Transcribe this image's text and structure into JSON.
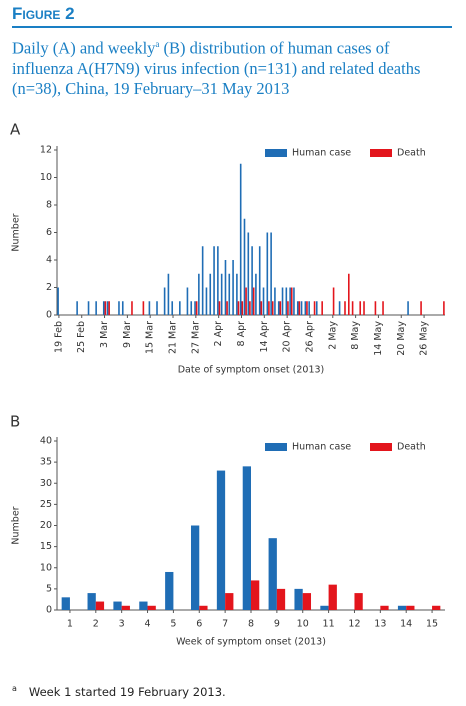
{
  "figure": {
    "label": "Figure 2",
    "title": [
      "Daily (A) and weekly",
      "a",
      " (B) distribution of human cases of influenza A(H7N9) virus infection (n=131) and related deaths (n=38), China, 19 February–31 May 2013"
    ],
    "footnote": {
      "mark": "a",
      "text": "Week 1 started 19 February 2013."
    }
  },
  "chart_data": [
    {
      "type": "bar",
      "panel": "A",
      "x_label": "Date of symptom onset (2013)",
      "y_label": "Number",
      "categories": [
        "19 Feb",
        null,
        null,
        null,
        null,
        null,
        "25 Feb",
        null,
        null,
        null,
        null,
        null,
        "3 Mar",
        null,
        null,
        null,
        null,
        null,
        "9 Mar",
        null,
        null,
        null,
        null,
        null,
        "15 Mar",
        null,
        null,
        null,
        null,
        null,
        "21 Mar",
        null,
        null,
        null,
        null,
        null,
        "27 Mar",
        null,
        null,
        null,
        null,
        null,
        "2 Apr",
        null,
        null,
        null,
        null,
        null,
        "8 Apr",
        null,
        null,
        null,
        null,
        null,
        "14 Apr",
        null,
        null,
        null,
        null,
        null,
        "20 Apr",
        null,
        null,
        null,
        null,
        null,
        "26 Apr",
        null,
        null,
        null,
        null,
        null,
        "2 May",
        null,
        null,
        null,
        null,
        null,
        "8 May",
        null,
        null,
        null,
        null,
        null,
        "14 May",
        null,
        null,
        null,
        null,
        null,
        "20 May",
        null,
        null,
        null,
        null,
        null,
        "26 May",
        null,
        null,
        null,
        null,
        null
      ],
      "series": [
        {
          "name": "Human case",
          "color": "#1f6db5",
          "values": [
            2,
            0,
            0,
            0,
            0,
            1,
            0,
            0,
            1,
            0,
            1,
            0,
            1,
            1,
            0,
            0,
            1,
            1,
            0,
            0,
            0,
            0,
            0,
            0,
            1,
            0,
            1,
            0,
            2,
            3,
            1,
            0,
            1,
            0,
            2,
            1,
            1,
            3,
            5,
            2,
            3,
            5,
            5,
            3,
            4,
            3,
            4,
            3,
            11,
            7,
            6,
            5,
            3,
            5,
            2,
            6,
            6,
            2,
            1,
            2,
            2,
            2,
            2,
            1,
            1,
            1,
            1,
            0,
            1,
            0,
            0,
            0,
            0,
            0,
            1,
            0,
            0,
            0,
            0,
            0,
            0,
            0,
            0,
            0,
            0,
            0,
            0,
            0,
            0,
            0,
            0,
            0,
            1,
            0,
            0,
            0,
            0,
            0,
            0,
            0,
            0,
            0
          ]
        },
        {
          "name": "Death",
          "color": "#e3151c",
          "values": [
            0,
            0,
            0,
            0,
            0,
            0,
            0,
            0,
            0,
            0,
            0,
            0,
            1,
            1,
            0,
            0,
            0,
            0,
            0,
            1,
            0,
            0,
            1,
            0,
            0,
            0,
            0,
            0,
            0,
            0,
            0,
            0,
            0,
            0,
            0,
            0,
            1,
            0,
            0,
            0,
            0,
            0,
            1,
            0,
            1,
            0,
            0,
            1,
            1,
            2,
            1,
            2,
            0,
            1,
            0,
            1,
            1,
            0,
            1,
            0,
            1,
            2,
            0,
            1,
            0,
            1,
            0,
            1,
            0,
            1,
            0,
            0,
            2,
            0,
            0,
            1,
            3,
            1,
            0,
            1,
            1,
            0,
            0,
            1,
            0,
            1,
            0,
            0,
            0,
            0,
            0,
            0,
            0,
            0,
            0,
            1,
            0,
            0,
            0,
            0,
            0,
            1
          ]
        }
      ],
      "ylim": [
        0,
        12
      ],
      "yticks": [
        0,
        2,
        4,
        6,
        8,
        10,
        12
      ],
      "grid": false,
      "legend": "top-right"
    },
    {
      "type": "bar",
      "panel": "B",
      "x_label": "Week of  symptom onset (2013)",
      "y_label": "Number",
      "categories": [
        1,
        2,
        3,
        4,
        5,
        6,
        7,
        8,
        9,
        10,
        11,
        12,
        13,
        14,
        15
      ],
      "series": [
        {
          "name": "Human case",
          "color": "#1f6db5",
          "values": [
            3,
            4,
            2,
            2,
            9,
            20,
            33,
            34,
            17,
            5,
            1,
            0,
            0,
            1,
            0
          ]
        },
        {
          "name": "Death",
          "color": "#e3151c",
          "values": [
            0,
            2,
            1,
            1,
            0,
            1,
            4,
            7,
            5,
            4,
            6,
            4,
            1,
            1,
            1
          ]
        }
      ],
      "ylim": [
        0,
        40
      ],
      "yticks": [
        0,
        5,
        10,
        15,
        20,
        25,
        30,
        35,
        40
      ],
      "grid": false,
      "legend": "top-right"
    }
  ]
}
